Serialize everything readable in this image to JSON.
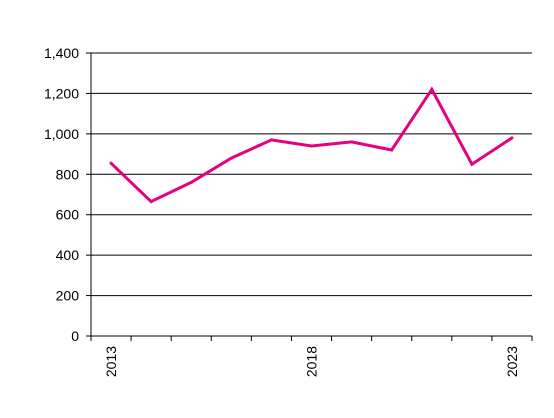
{
  "chart_data": {
    "type": "line",
    "title": "",
    "xlabel": "",
    "ylabel": "",
    "x": [
      2013,
      2014,
      2015,
      2016,
      2017,
      2018,
      2019,
      2020,
      2021,
      2022,
      2023
    ],
    "series": [
      {
        "values": [
          855,
          665,
          760,
          880,
          970,
          940,
          960,
          920,
          1220,
          850,
          980
        ]
      }
    ],
    "ylim": [
      0,
      1400
    ],
    "y_ticks": [
      0,
      200,
      400,
      600,
      800,
      1000,
      1200,
      1400
    ],
    "y_tick_labels": [
      "0",
      "200",
      "400",
      "600",
      "800",
      "1,000",
      "1,200",
      "1,400"
    ],
    "x_tick_labels": [
      "2013",
      "2018",
      "2023"
    ],
    "grid": "horizontal",
    "legend": "none",
    "colors": {
      "line": "#E6007E",
      "grid": "#000000",
      "axis": "#000000"
    }
  }
}
